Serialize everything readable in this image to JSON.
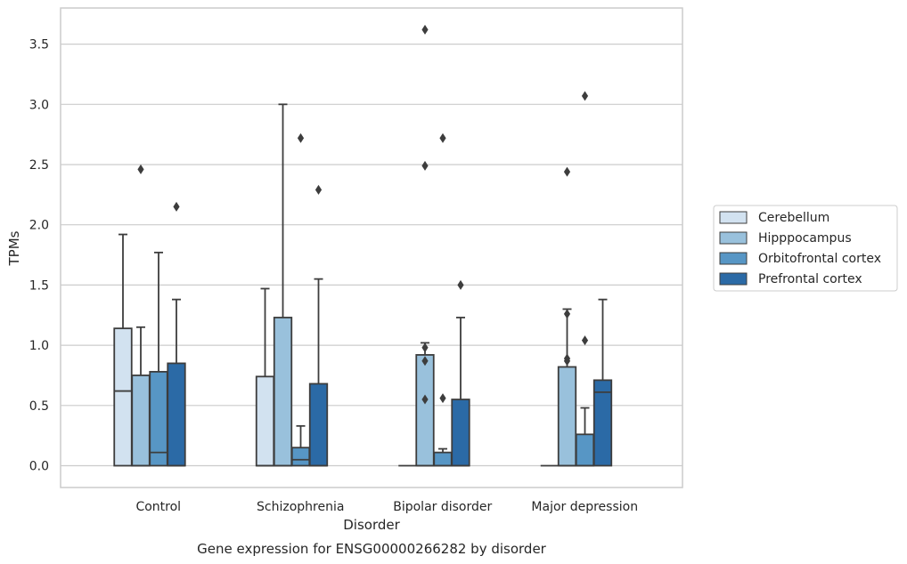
{
  "chart_data": {
    "type": "box",
    "title": "",
    "caption": "Gene expression for ENSG00000266282 by disorder",
    "xlabel": "Disorder",
    "ylabel": "TPMs",
    "ylim": [
      -0.18,
      3.82
    ],
    "yticks": [
      "0.0",
      "0.5",
      "1.0",
      "1.5",
      "2.0",
      "2.5",
      "3.0",
      "3.5"
    ],
    "grid": "horizontal",
    "legend_position": "right",
    "categories": [
      "Control",
      "Schizophrenia",
      "Bipolar disorder",
      "Major depression"
    ],
    "series": [
      {
        "name": "Cerebellum",
        "color": "#d2e2f0",
        "boxes": [
          {
            "whisker_low": 0,
            "q1": 0,
            "median": 0.62,
            "q3": 1.14,
            "whisker_high": 1.92,
            "outliers": []
          },
          {
            "whisker_low": 0,
            "q1": 0,
            "median": 0,
            "q3": 0.74,
            "whisker_high": 1.47,
            "outliers": []
          },
          {
            "whisker_low": 0,
            "q1": 0,
            "median": 0,
            "q3": 0,
            "whisker_high": 0,
            "outliers": []
          },
          {
            "whisker_low": 0,
            "q1": 0,
            "median": 0,
            "q3": 0,
            "whisker_high": 0,
            "outliers": []
          }
        ]
      },
      {
        "name": "Hipppocampus",
        "color": "#99c1dc",
        "boxes": [
          {
            "whisker_low": 0,
            "q1": 0,
            "median": 0,
            "q3": 0.75,
            "whisker_high": 1.15,
            "outliers": [
              2.46
            ]
          },
          {
            "whisker_low": 0,
            "q1": 0,
            "median": 0,
            "q3": 1.23,
            "whisker_high": 3.0,
            "outliers": []
          },
          {
            "whisker_low": 0,
            "q1": 0,
            "median": 0,
            "q3": 0.92,
            "whisker_high": 1.02,
            "outliers": [
              3.62,
              2.49,
              0.98,
              0.87,
              0.55
            ]
          },
          {
            "whisker_low": 0,
            "q1": 0,
            "median": 0,
            "q3": 0.82,
            "whisker_high": 1.3,
            "outliers": [
              2.44,
              1.26,
              0.89,
              0.87
            ]
          }
        ]
      },
      {
        "name": "Orbitofrontal cortex",
        "color": "#5796c5",
        "boxes": [
          {
            "whisker_low": 0,
            "q1": 0,
            "median": 0.11,
            "q3": 0.78,
            "whisker_high": 1.77,
            "outliers": []
          },
          {
            "whisker_low": 0,
            "q1": 0,
            "median": 0.05,
            "q3": 0.15,
            "whisker_high": 0.33,
            "outliers": [
              2.72
            ]
          },
          {
            "whisker_low": 0,
            "q1": 0,
            "median": 0,
            "q3": 0.11,
            "whisker_high": 0.14,
            "outliers": [
              2.72,
              0.56
            ]
          },
          {
            "whisker_low": 0,
            "q1": 0,
            "median": 0,
            "q3": 0.26,
            "whisker_high": 0.48,
            "outliers": [
              3.07,
              1.04
            ]
          }
        ]
      },
      {
        "name": "Prefrontal cortex",
        "color": "#2b6aa6",
        "boxes": [
          {
            "whisker_low": 0,
            "q1": 0,
            "median": 0,
            "q3": 0.85,
            "whisker_high": 1.38,
            "outliers": [
              2.15
            ]
          },
          {
            "whisker_low": 0,
            "q1": 0,
            "median": 0,
            "q3": 0.68,
            "whisker_high": 1.55,
            "outliers": [
              2.29
            ]
          },
          {
            "whisker_low": 0,
            "q1": 0,
            "median": 0,
            "q3": 0.55,
            "whisker_high": 1.23,
            "outliers": [
              1.5
            ]
          },
          {
            "whisker_low": 0,
            "q1": 0,
            "median": 0.61,
            "q3": 0.71,
            "whisker_high": 1.38,
            "outliers": []
          }
        ]
      }
    ]
  }
}
